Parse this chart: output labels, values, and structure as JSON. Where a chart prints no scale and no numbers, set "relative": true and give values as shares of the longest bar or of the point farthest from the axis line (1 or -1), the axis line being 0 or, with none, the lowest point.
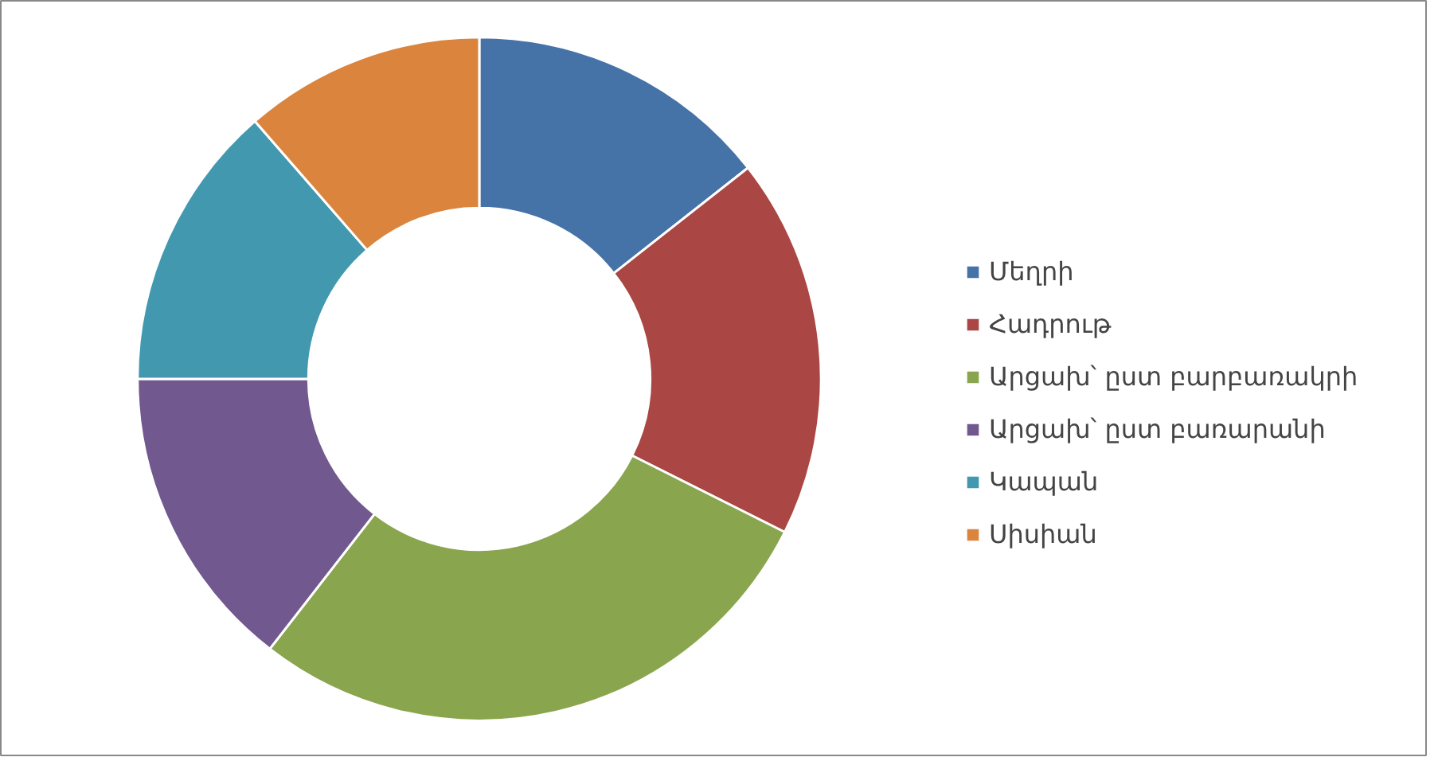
{
  "chart_data": {
    "type": "donut",
    "relative": true,
    "categories": [
      "Մեղրի",
      "Հադրութ",
      "Արցախ՝ ըստ բարբառակրի",
      "Արցախ՝ ըստ բառարանի",
      "Կապան",
      "Սիսիան"
    ],
    "values": [
      14.4,
      18.0,
      28.1,
      14.5,
      13.6,
      11.4
    ],
    "colors": [
      "#4572a7",
      "#aa4643",
      "#89a54e",
      "#71588f",
      "#4198af",
      "#db843d"
    ],
    "legend": "right"
  }
}
